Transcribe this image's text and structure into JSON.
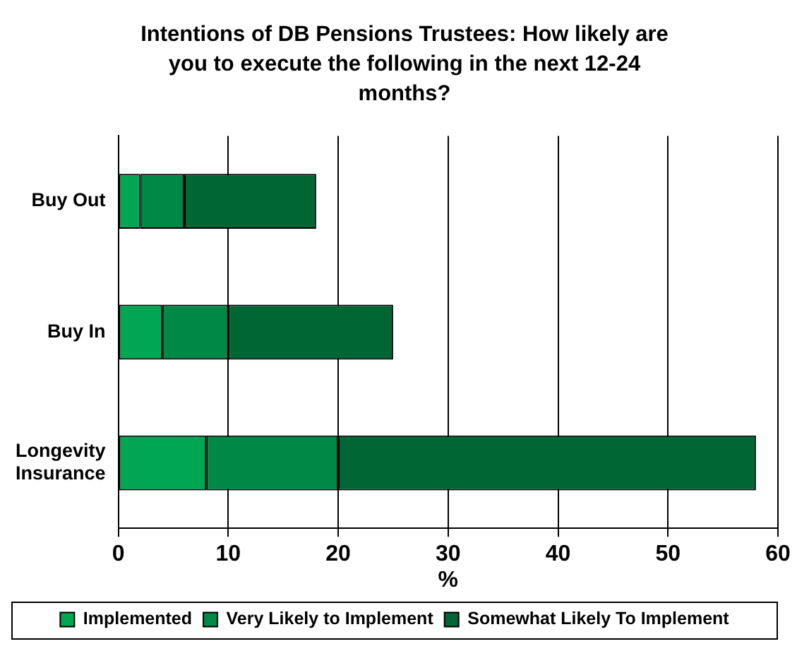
{
  "chart_data": {
    "type": "bar",
    "orientation": "horizontal",
    "stacked": true,
    "title": "Intentions of DB Pensions Trustees: How likely are you to execute the following in the next 12-24 months?",
    "categories": [
      "Buy Out",
      "Buy In",
      "Longevity Insurance"
    ],
    "xlabel": "%",
    "xlim": [
      0,
      60
    ],
    "xticks": [
      0,
      10,
      20,
      30,
      40,
      50,
      60
    ],
    "grid": "x",
    "legend": "bottom",
    "series": [
      {
        "name": "Implemented",
        "color": "#00a651",
        "values": [
          2,
          4,
          8
        ]
      },
      {
        "name": "Very Likely to Implement",
        "color": "#008847",
        "values": [
          4,
          6,
          12
        ]
      },
      {
        "name": "Somewhat Likely To Implement",
        "color": "#006633",
        "values": [
          12,
          15,
          38
        ]
      }
    ]
  }
}
